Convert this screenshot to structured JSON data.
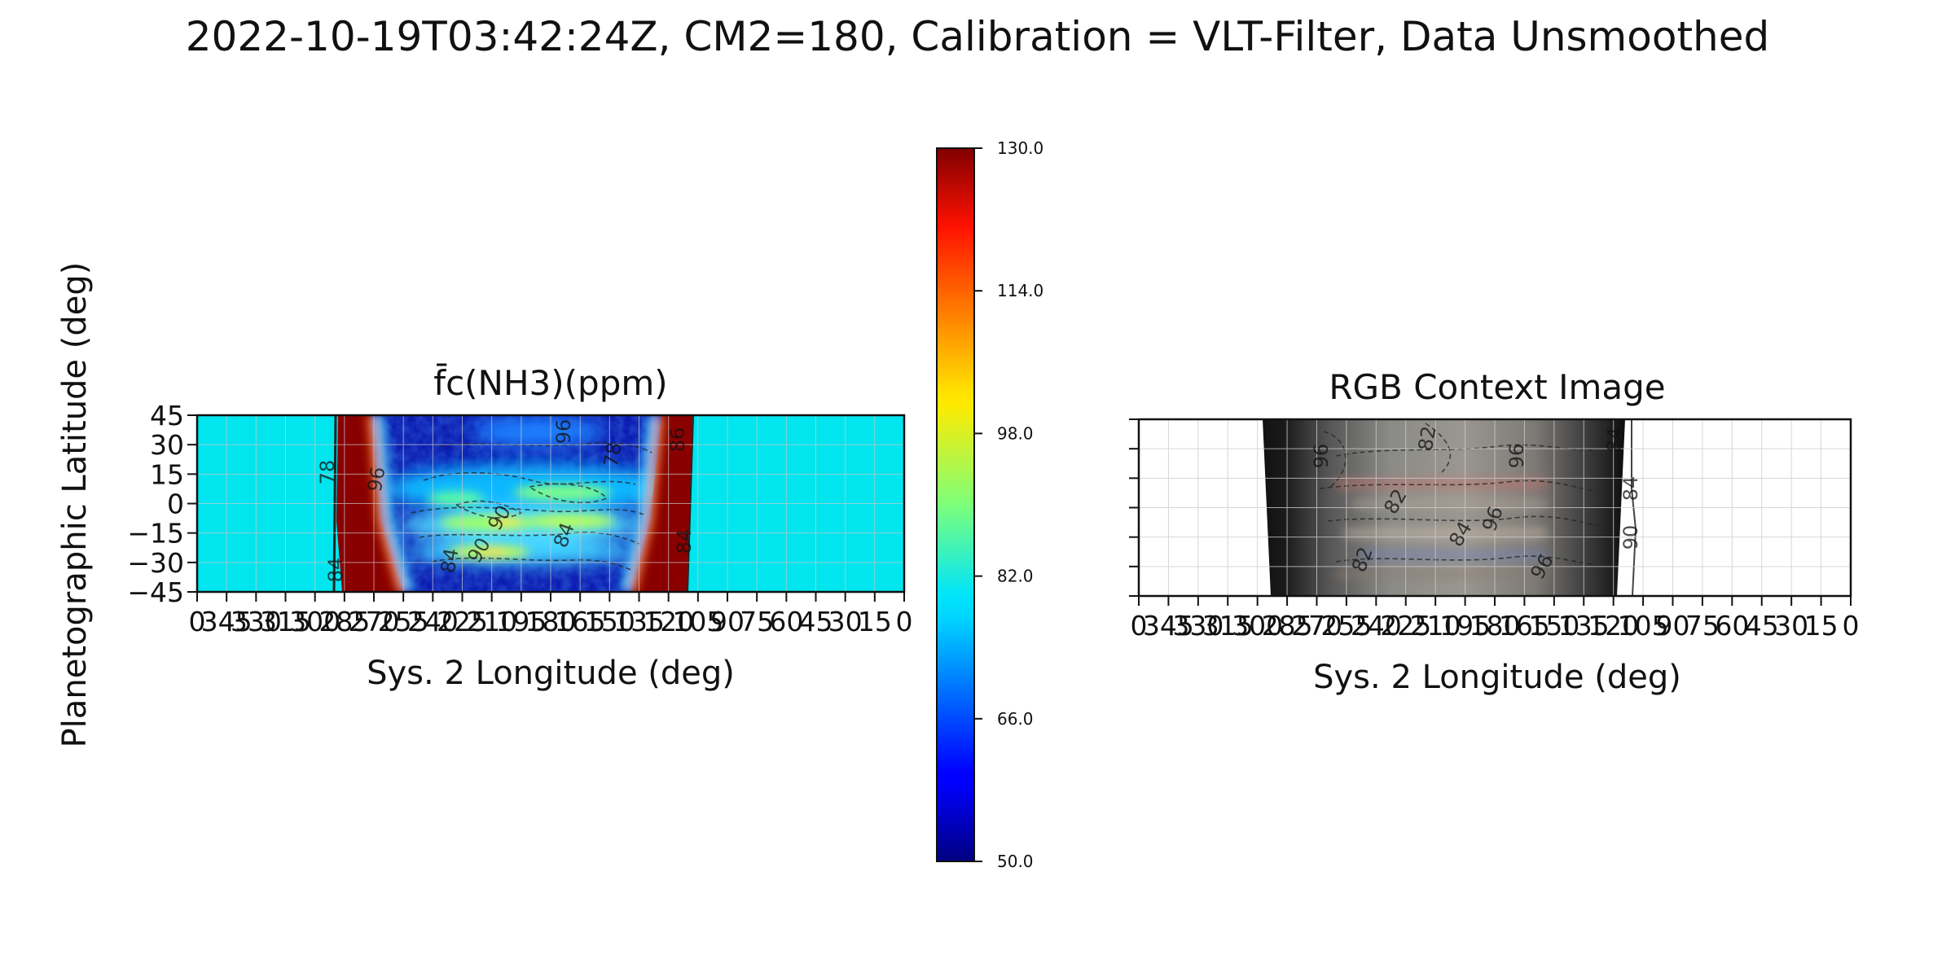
{
  "figure": {
    "title": "2022-10-19T03:42:24Z, CM2=180, Calibration = VLT-Filter, Data Unsmoothed"
  },
  "chart_data": [
    {
      "type": "heatmap",
      "title": "f̄c(NH3)(ppm)",
      "xlabel": "Sys. 2 Longitude (deg)",
      "ylabel": "Planetographic Latitude (deg)",
      "xlim": [
        360,
        0
      ],
      "ylim": [
        -45,
        45
      ],
      "x_ticks": [
        "0",
        "345",
        "330",
        "315",
        "300",
        "285",
        "270",
        "255",
        "240",
        "225",
        "210",
        "195",
        "180",
        "165",
        "150",
        "135",
        "120",
        "105",
        "90",
        "75",
        "60",
        "45",
        "30",
        "15",
        "0"
      ],
      "y_ticks": [
        "45",
        "30",
        "15",
        "0",
        "−15",
        "−30",
        "−45"
      ],
      "grid": true,
      "colorscale": "jet",
      "fill_value_outside_disk": 80,
      "disk_edges_longitude": [
        287,
        90
      ],
      "saturated_limb_bands_longitude": [
        [
          287,
          270
        ],
        [
          110,
          90
        ]
      ],
      "contour_labels": [
        "78",
        "84",
        "96",
        "90",
        "84",
        "90",
        "84",
        "86",
        "84",
        "78",
        "96"
      ],
      "colorbar": {
        "min": 50.0,
        "max": 130.0,
        "ticks": [
          "130.0",
          "114.0",
          "98.0",
          "82.0",
          "66.0",
          "50.0"
        ]
      }
    },
    {
      "type": "image",
      "title": "RGB Context Image",
      "xlabel": "Sys. 2 Longitude (deg)",
      "xlim": [
        360,
        0
      ],
      "ylim": [
        -45,
        45
      ],
      "x_ticks": [
        "0",
        "345",
        "330",
        "315",
        "300",
        "285",
        "270",
        "255",
        "240",
        "225",
        "210",
        "195",
        "180",
        "165",
        "150",
        "135",
        "120",
        "105",
        "90",
        "75",
        "60",
        "45",
        "30",
        "15",
        "0"
      ],
      "grid": true,
      "disk_edges_longitude": [
        300,
        115
      ],
      "contour_labels": [
        "96",
        "82",
        "96",
        "96",
        "82",
        "84",
        "96",
        "84",
        "90",
        "84",
        "82"
      ]
    }
  ]
}
